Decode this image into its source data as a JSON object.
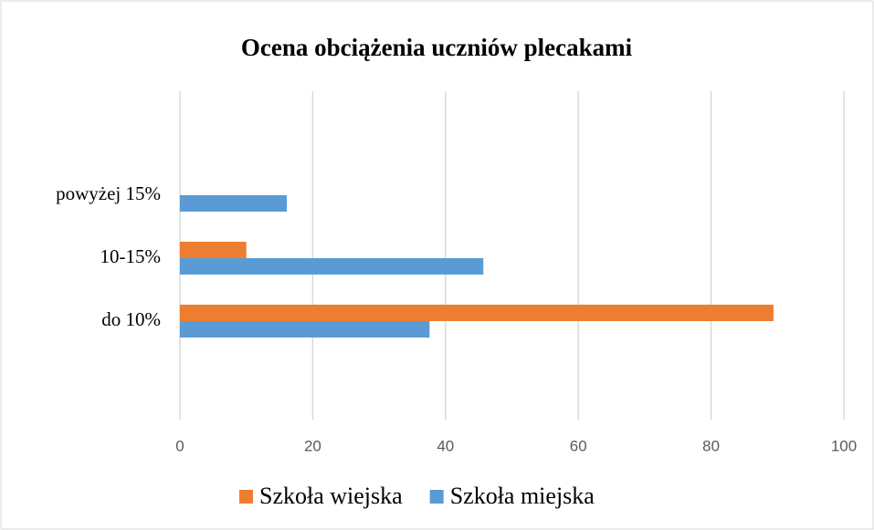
{
  "chart_data": {
    "type": "bar",
    "orientation": "horizontal",
    "title": "Ocena obciążenia uczniów plecakami",
    "categories": [
      "do 10%",
      "10-15%",
      "powyżej 15%"
    ],
    "series": [
      {
        "name": "Szkoła wiejska",
        "color": "#ed7d31",
        "values": [
          89.4,
          10.0,
          0
        ]
      },
      {
        "name": "Szkoła miejska",
        "color": "#5b9bd5",
        "values": [
          37.6,
          45.7,
          16.1
        ]
      }
    ],
    "xlim": [
      0,
      100
    ],
    "xticks": [
      0,
      20,
      40,
      60,
      80,
      100
    ],
    "grid": true,
    "legend": "bottom"
  }
}
